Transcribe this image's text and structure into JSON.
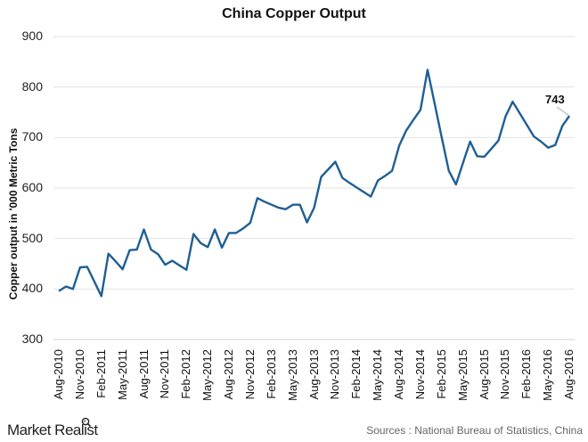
{
  "chart_data": {
    "type": "line",
    "title": "China Copper Output",
    "xlabel": "",
    "ylabel": "Copper output in '000 Metric Tons",
    "ylim": [
      300,
      900
    ],
    "yticks": [
      900,
      800,
      700,
      600,
      500,
      400,
      300
    ],
    "grid": true,
    "legend": null,
    "tick_labels": [
      "Aug-2010",
      "Nov-2010",
      "Feb-2011",
      "May-2011",
      "Aug-2011",
      "Nov-2011",
      "Feb-2012",
      "May-2012",
      "Aug-2012",
      "Nov-2012",
      "Feb-2013",
      "May-2013",
      "Aug-2013",
      "Nov-2013",
      "Feb-2014",
      "May-2014",
      "Aug-2014",
      "Nov-2014",
      "Feb-2015",
      "May-2015",
      "Aug-2015",
      "Nov-2015",
      "Feb-2016",
      "May-2016",
      "Aug-2016"
    ],
    "x_start": "Aug-2010",
    "x_end": "Aug-2016",
    "frequency": "monthly",
    "series": [
      {
        "name": "China Copper Output",
        "color": "#1f5f94",
        "values": [
          396,
          405,
          400,
          443,
          444,
          415,
          386,
          470,
          455,
          439,
          477,
          478,
          518,
          478,
          469,
          448,
          456,
          447,
          438,
          509,
          491,
          483,
          518,
          482,
          511,
          511,
          520,
          531,
          580,
          573,
          567,
          561,
          558,
          567,
          567,
          532,
          561,
          622,
          637,
          652,
          620,
          610,
          601,
          592,
          583,
          615,
          624,
          634,
          684,
          714,
          735,
          755,
          834,
          767,
          700,
          634,
          607,
          650,
          692,
          663,
          662,
          678,
          694,
          742,
          771,
          748,
          725,
          702,
          692,
          680,
          685,
          723,
          743
        ]
      }
    ],
    "annotations": [
      {
        "label": "743",
        "point": "Aug-2016"
      }
    ]
  },
  "footer": {
    "brand": "Market Realist",
    "source": "Sources : National Bureau of Statistics, China"
  }
}
